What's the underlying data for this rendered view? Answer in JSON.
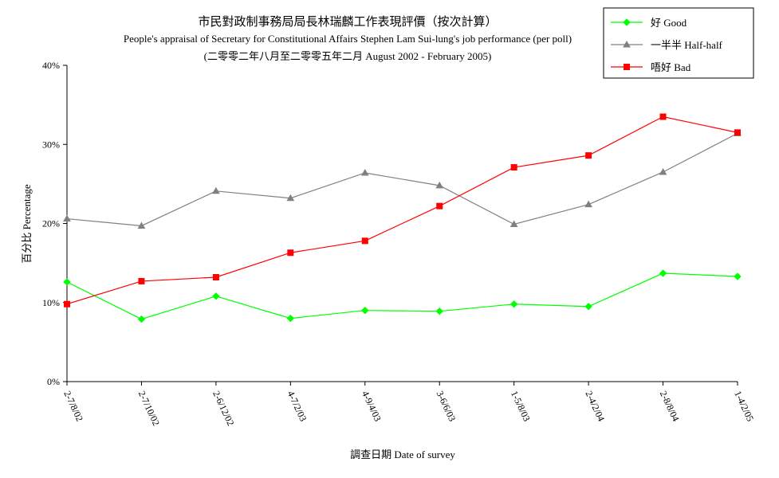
{
  "chart_data": {
    "type": "line",
    "title": "市民對政制事務局局長林瑞麟工作表現評價（按次計算）",
    "subtitle": "People's appraisal of Secretary for Constitutional Affairs Stephen Lam Sui-lung's job performance (per poll)",
    "subtitle2": "(二零零二年八月至二零零五年二月 August 2002 - February 2005)",
    "xlabel": "調查日期 Date of survey",
    "ylabel": "百分比 Percentage",
    "ylim": [
      0,
      40
    ],
    "yticks": [
      0,
      10,
      20,
      30,
      40
    ],
    "ytick_labels": [
      "0%",
      "10%",
      "20%",
      "30%",
      "40%"
    ],
    "categories": [
      "2-7/8/02",
      "2-7/10/02",
      "2-6/12/02",
      "4-7/2/03",
      "4-9/4/03",
      "3-6/6/03",
      "1-5/8/03",
      "2-4/2/04",
      "2-8/8/04",
      "1-4/2/05"
    ],
    "series": [
      {
        "name": "好 Good",
        "color": "#00ff00",
        "marker": "diamond",
        "values": [
          12.6,
          7.9,
          10.8,
          8.0,
          9.0,
          8.9,
          9.8,
          9.5,
          13.7,
          13.3
        ]
      },
      {
        "name": "一半半 Half-half",
        "color": "#808080",
        "marker": "triangle",
        "values": [
          20.6,
          19.7,
          24.1,
          23.2,
          26.4,
          24.8,
          19.9,
          22.4,
          26.5,
          31.4
        ]
      },
      {
        "name": "唔好 Bad",
        "color": "#ff0000",
        "marker": "square",
        "values": [
          9.8,
          12.7,
          13.2,
          16.3,
          17.8,
          22.2,
          27.1,
          28.6,
          33.5,
          31.5
        ]
      }
    ],
    "grid": false,
    "legend_position": "top-right"
  }
}
